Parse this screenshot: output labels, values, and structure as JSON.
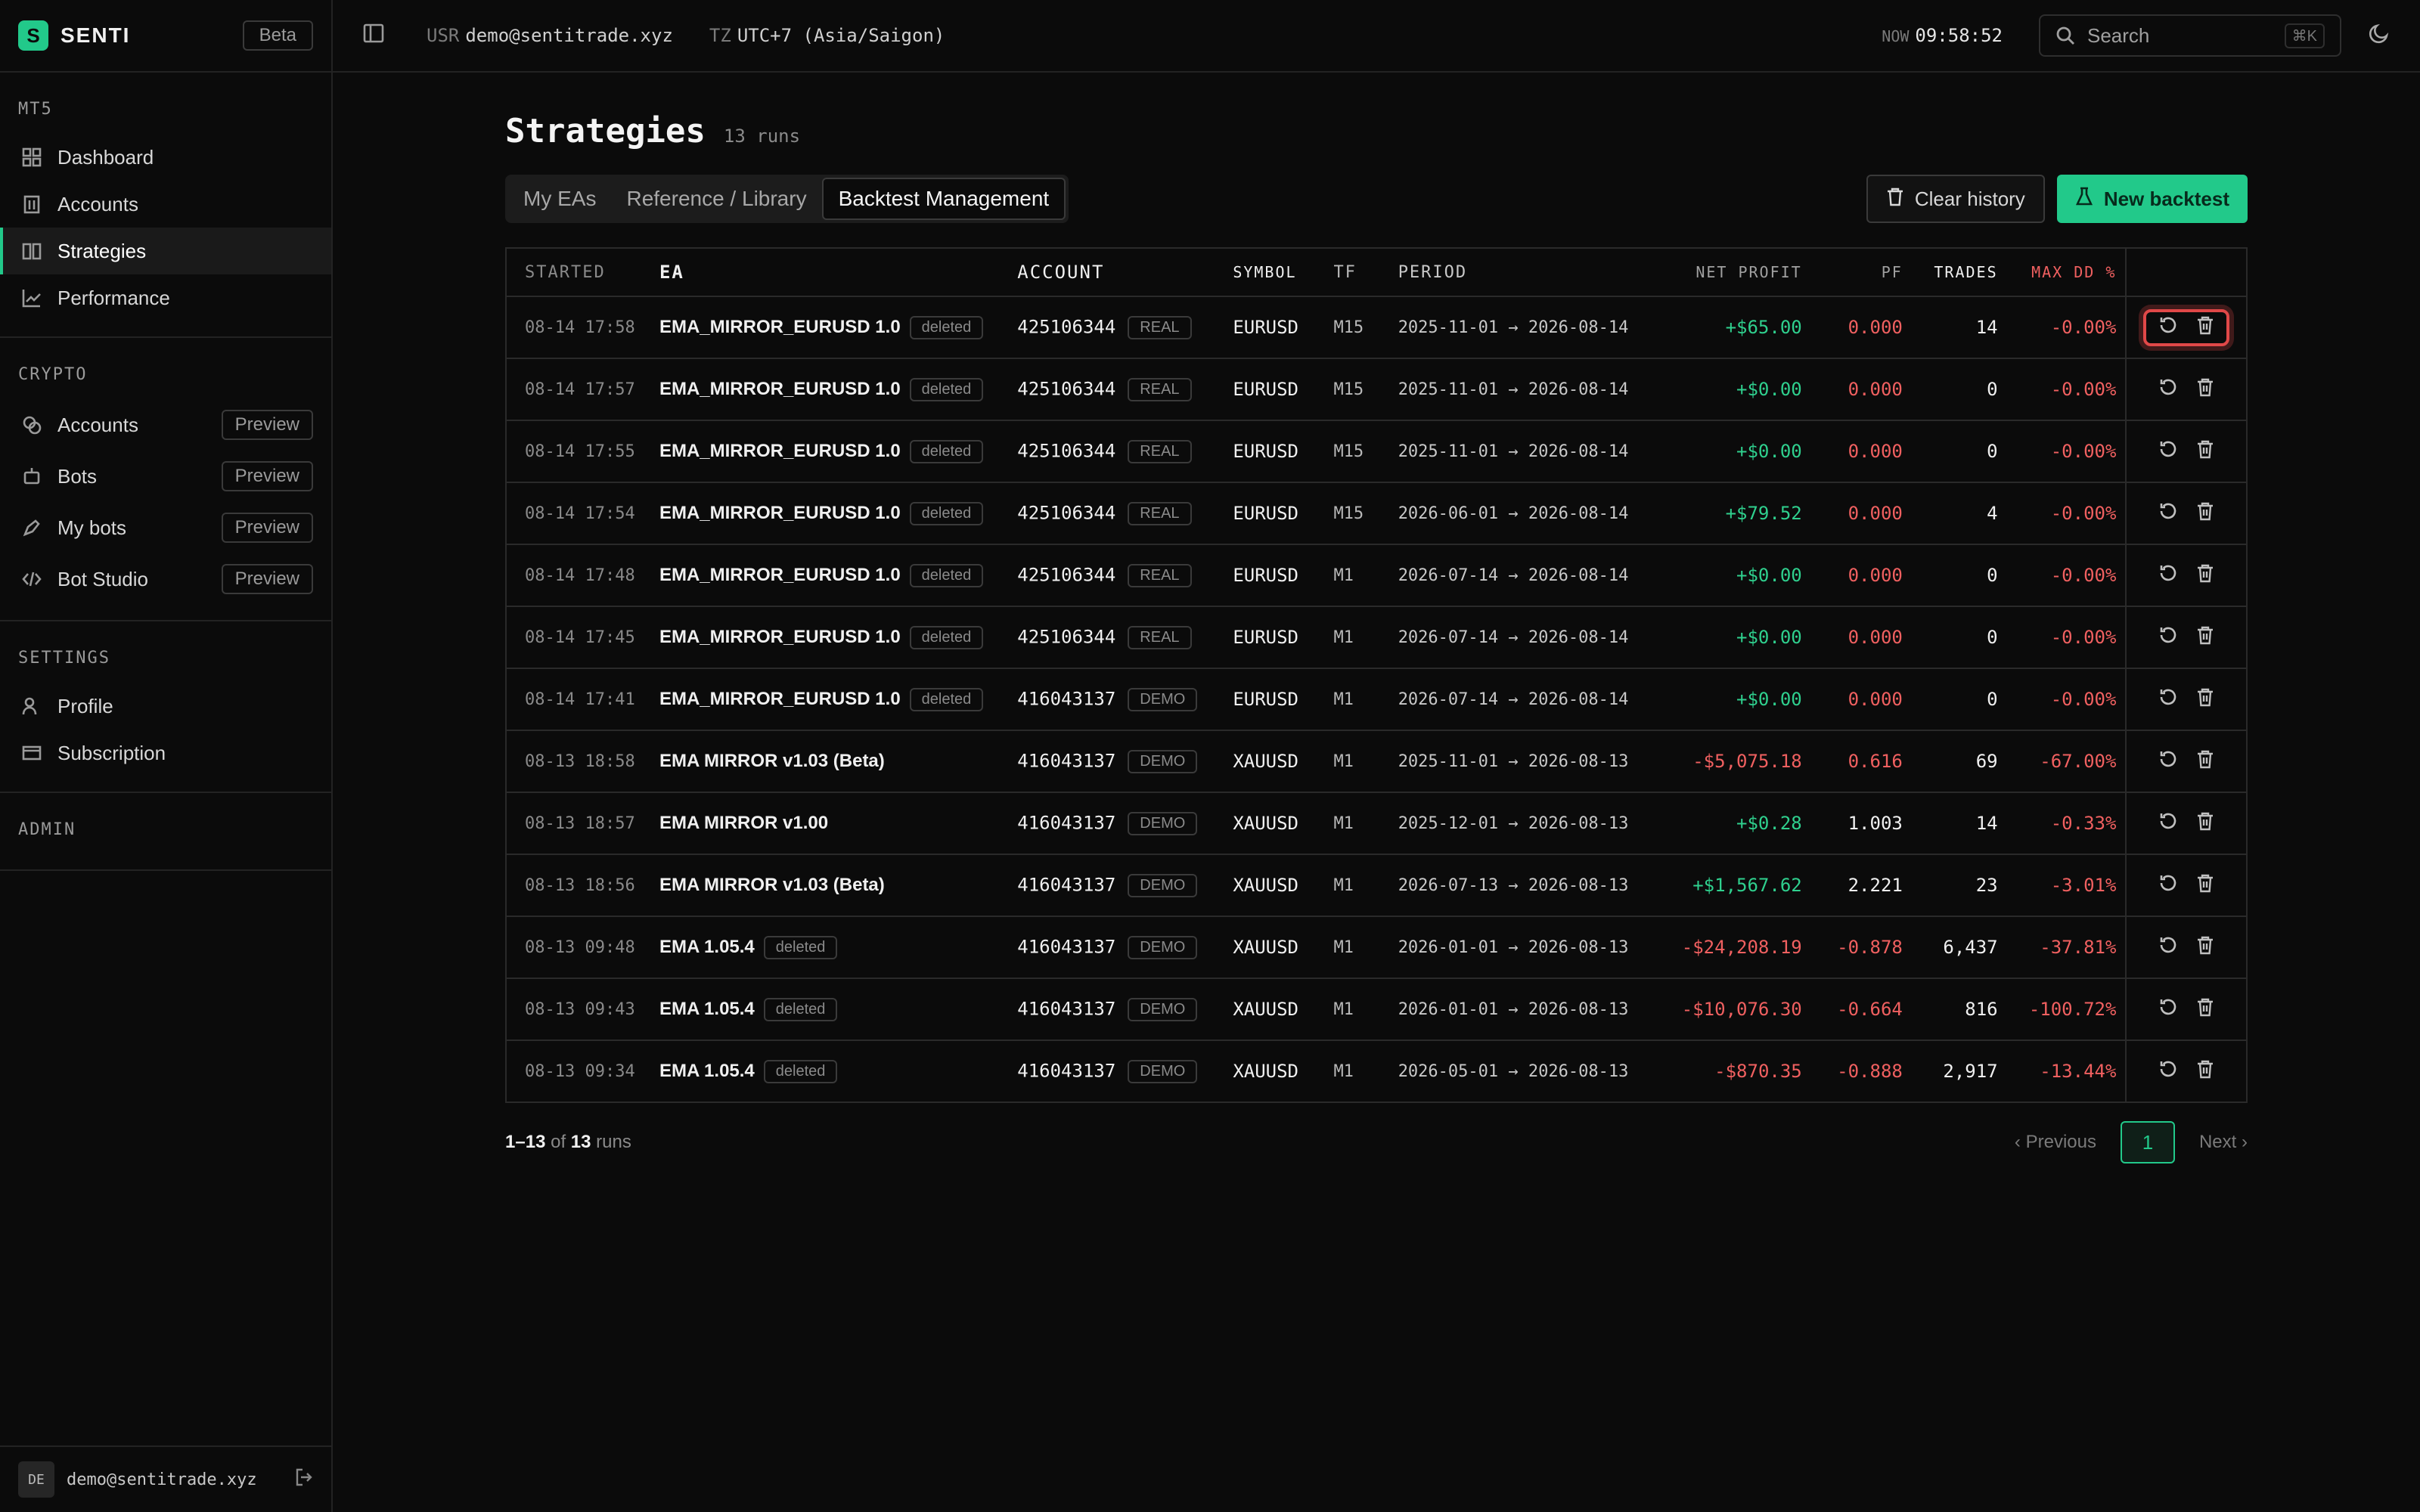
{
  "brand": {
    "name": "SENTI",
    "badge": "Beta",
    "logo_letter": "S"
  },
  "sidebar": {
    "mt5": {
      "title": "MT5",
      "items": [
        {
          "label": "Dashboard",
          "icon": "grid-icon"
        },
        {
          "label": "Accounts",
          "icon": "building-icon"
        },
        {
          "label": "Strategies",
          "icon": "book-icon",
          "active": true
        },
        {
          "label": "Performance",
          "icon": "chart-line-icon"
        }
      ]
    },
    "crypto": {
      "title": "CRYPTO",
      "items": [
        {
          "label": "Accounts",
          "badge": "Preview",
          "icon": "coins-icon"
        },
        {
          "label": "Bots",
          "badge": "Preview",
          "icon": "bot-icon"
        },
        {
          "label": "My bots",
          "badge": "Preview",
          "icon": "pen-icon"
        },
        {
          "label": "Bot Studio",
          "badge": "Preview",
          "icon": "code-icon"
        }
      ]
    },
    "settings": {
      "title": "SETTINGS",
      "items": [
        {
          "label": "Profile",
          "icon": "user-icon"
        },
        {
          "label": "Subscription",
          "icon": "card-icon"
        }
      ]
    },
    "admin": {
      "title": "ADMIN"
    },
    "footer": {
      "avatar": "DE",
      "email": "demo@sentitrade.xyz"
    }
  },
  "topbar": {
    "usr_key": "USR",
    "usr_val": "demo@sentitrade.xyz",
    "tz_key": "TZ",
    "tz_val": "UTC+7 (Asia/Saigon)",
    "now_key": "NOW",
    "now_val": "09:58:52",
    "search_placeholder": "Search",
    "search_kbd": "⌘K"
  },
  "page": {
    "title": "Strategies",
    "count": "13 runs",
    "tabs": [
      "My EAs",
      "Reference / Library",
      "Backtest Management"
    ],
    "active_tab": 2,
    "clear_label": "Clear history",
    "new_label": "New backtest"
  },
  "table": {
    "headers": [
      "STARTED",
      "EA",
      "ACCOUNT",
      "SYMBOL",
      "TF",
      "PERIOD",
      "NET PROFIT",
      "PF",
      "TRADES",
      "MAX DD %"
    ],
    "rows": [
      {
        "started": "08-14 17:58",
        "ea": "EMA_MIRROR_EURUSD 1.0",
        "ea_tag": "deleted",
        "account": "425106344",
        "acct_type": "REAL",
        "symbol": "EURUSD",
        "tf": "M15",
        "period": "2025-11-01 → 2026-08-14",
        "net": "+$65.00",
        "net_sign": "pos",
        "pf": "0.000",
        "pf_sign": "neg",
        "trades": "14",
        "dd": "-0.00%"
      },
      {
        "started": "08-14 17:57",
        "ea": "EMA_MIRROR_EURUSD 1.0",
        "ea_tag": "deleted",
        "account": "425106344",
        "acct_type": "REAL",
        "symbol": "EURUSD",
        "tf": "M15",
        "period": "2025-11-01 → 2026-08-14",
        "net": "+$0.00",
        "net_sign": "pos",
        "pf": "0.000",
        "pf_sign": "neg",
        "trades": "0",
        "dd": "-0.00%"
      },
      {
        "started": "08-14 17:55",
        "ea": "EMA_MIRROR_EURUSD 1.0",
        "ea_tag": "deleted",
        "account": "425106344",
        "acct_type": "REAL",
        "symbol": "EURUSD",
        "tf": "M15",
        "period": "2025-11-01 → 2026-08-14",
        "net": "+$0.00",
        "net_sign": "pos",
        "pf": "0.000",
        "pf_sign": "neg",
        "trades": "0",
        "dd": "-0.00%"
      },
      {
        "started": "08-14 17:54",
        "ea": "EMA_MIRROR_EURUSD 1.0",
        "ea_tag": "deleted",
        "account": "425106344",
        "acct_type": "REAL",
        "symbol": "EURUSD",
        "tf": "M15",
        "period": "2026-06-01 → 2026-08-14",
        "net": "+$79.52",
        "net_sign": "pos",
        "pf": "0.000",
        "pf_sign": "neg",
        "trades": "4",
        "dd": "-0.00%"
      },
      {
        "started": "08-14 17:48",
        "ea": "EMA_MIRROR_EURUSD 1.0",
        "ea_tag": "deleted",
        "account": "425106344",
        "acct_type": "REAL",
        "symbol": "EURUSD",
        "tf": "M1",
        "period": "2026-07-14 → 2026-08-14",
        "net": "+$0.00",
        "net_sign": "pos",
        "pf": "0.000",
        "pf_sign": "neg",
        "trades": "0",
        "dd": "-0.00%"
      },
      {
        "started": "08-14 17:45",
        "ea": "EMA_MIRROR_EURUSD 1.0",
        "ea_tag": "deleted",
        "account": "425106344",
        "acct_type": "REAL",
        "symbol": "EURUSD",
        "tf": "M1",
        "period": "2026-07-14 → 2026-08-14",
        "net": "+$0.00",
        "net_sign": "pos",
        "pf": "0.000",
        "pf_sign": "neg",
        "trades": "0",
        "dd": "-0.00%"
      },
      {
        "started": "08-14 17:41",
        "ea": "EMA_MIRROR_EURUSD 1.0",
        "ea_tag": "deleted",
        "account": "416043137",
        "acct_type": "DEMO",
        "symbol": "EURUSD",
        "tf": "M1",
        "period": "2026-07-14 → 2026-08-14",
        "net": "+$0.00",
        "net_sign": "pos",
        "pf": "0.000",
        "pf_sign": "neg",
        "trades": "0",
        "dd": "-0.00%"
      },
      {
        "started": "08-13 18:58",
        "ea": "EMA MIRROR v1.03 (Beta)",
        "ea_tag": "",
        "account": "416043137",
        "acct_type": "DEMO",
        "symbol": "XAUUSD",
        "tf": "M1",
        "period": "2025-11-01 → 2026-08-13",
        "net": "-$5,075.18",
        "net_sign": "neg",
        "pf": "0.616",
        "pf_sign": "neg",
        "trades": "69",
        "dd": "-67.00%"
      },
      {
        "started": "08-13 18:57",
        "ea": "EMA MIRROR v1.00",
        "ea_tag": "",
        "account": "416043137",
        "acct_type": "DEMO",
        "symbol": "XAUUSD",
        "tf": "M1",
        "period": "2025-12-01 → 2026-08-13",
        "net": "+$0.28",
        "net_sign": "pos",
        "pf": "1.003",
        "pf_sign": "neu",
        "trades": "14",
        "dd": "-0.33%"
      },
      {
        "started": "08-13 18:56",
        "ea": "EMA MIRROR v1.03 (Beta)",
        "ea_tag": "",
        "account": "416043137",
        "acct_type": "DEMO",
        "symbol": "XAUUSD",
        "tf": "M1",
        "period": "2026-07-13 → 2026-08-13",
        "net": "+$1,567.62",
        "net_sign": "pos",
        "pf": "2.221",
        "pf_sign": "neu",
        "trades": "23",
        "dd": "-3.01%"
      },
      {
        "started": "08-13 09:48",
        "ea": "EMA 1.05.4",
        "ea_tag": "deleted",
        "account": "416043137",
        "acct_type": "DEMO",
        "symbol": "XAUUSD",
        "tf": "M1",
        "period": "2026-01-01 → 2026-08-13",
        "net": "-$24,208.19",
        "net_sign": "neg",
        "pf": "-0.878",
        "pf_sign": "neg",
        "trades": "6,437",
        "dd": "-37.81%"
      },
      {
        "started": "08-13 09:43",
        "ea": "EMA 1.05.4",
        "ea_tag": "deleted",
        "account": "416043137",
        "acct_type": "DEMO",
        "symbol": "XAUUSD",
        "tf": "M1",
        "period": "2026-01-01 → 2026-08-13",
        "net": "-$10,076.30",
        "net_sign": "neg",
        "pf": "-0.664",
        "pf_sign": "neg",
        "trades": "816",
        "dd": "-100.72%"
      },
      {
        "started": "08-13 09:34",
        "ea": "EMA 1.05.4",
        "ea_tag": "deleted",
        "account": "416043137",
        "acct_type": "DEMO",
        "symbol": "XAUUSD",
        "tf": "M1",
        "period": "2026-05-01 → 2026-08-13",
        "net": "-$870.35",
        "net_sign": "neg",
        "pf": "-0.888",
        "pf_sign": "neg",
        "trades": "2,917",
        "dd": "-13.44%"
      }
    ]
  },
  "pager": {
    "from": "1",
    "to": "13",
    "of": "of",
    "total": "13",
    "unit": "runs",
    "prev": "Previous",
    "page": "1",
    "next": "Next"
  },
  "colors": {
    "accent": "#22c98a",
    "positive": "#2fd08e",
    "negative": "#f06060",
    "highlight": "#e04848"
  }
}
